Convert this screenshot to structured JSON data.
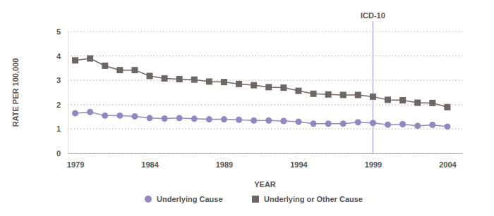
{
  "chart_data": {
    "type": "line",
    "x_label": "YEAR",
    "y_label": "RATE PER 100,000",
    "x": [
      1979,
      1980,
      1981,
      1982,
      1983,
      1984,
      1985,
      1986,
      1987,
      1988,
      1989,
      1990,
      1991,
      1992,
      1993,
      1994,
      1995,
      1996,
      1997,
      1998,
      1999,
      2000,
      2001,
      2002,
      2003,
      2004
    ],
    "series": [
      {
        "name": "Underlying Cause",
        "color": "#9088c4",
        "marker": "circle",
        "values": [
          1.65,
          1.7,
          1.55,
          1.55,
          1.52,
          1.45,
          1.43,
          1.45,
          1.42,
          1.4,
          1.4,
          1.38,
          1.35,
          1.35,
          1.33,
          1.3,
          1.22,
          1.22,
          1.22,
          1.28,
          1.25,
          1.18,
          1.2,
          1.13,
          1.17,
          1.1
        ]
      },
      {
        "name": "Underlying or Other Cause",
        "color": "#6e6565",
        "marker": "square",
        "values": [
          3.82,
          3.9,
          3.6,
          3.42,
          3.42,
          3.18,
          3.08,
          3.05,
          3.03,
          2.95,
          2.93,
          2.85,
          2.8,
          2.72,
          2.7,
          2.57,
          2.45,
          2.42,
          2.4,
          2.4,
          2.33,
          2.2,
          2.18,
          2.08,
          2.07,
          1.9
        ]
      }
    ],
    "xlim": [
      1978.5,
      2005
    ],
    "xticks": [
      1979,
      1984,
      1989,
      1994,
      1999,
      2004
    ],
    "ylim": [
      0,
      5
    ],
    "yticks": [
      0,
      1,
      2,
      3,
      4,
      5
    ],
    "grid": true,
    "legend": "bottom",
    "annotations": [
      {
        "x": 1999,
        "text": "ICD-10"
      }
    ]
  }
}
